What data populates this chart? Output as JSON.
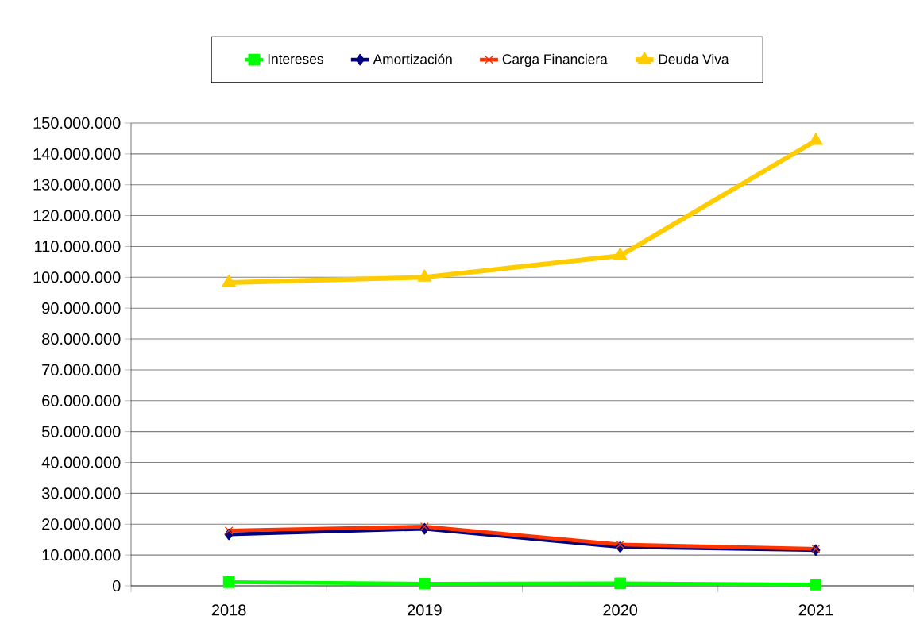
{
  "chart_data": {
    "type": "line",
    "categories": [
      "2018",
      "2019",
      "2020",
      "2021"
    ],
    "series": [
      {
        "name": "Intereses",
        "color": "#00ff00",
        "marker": "square",
        "values": [
          1200000,
          700000,
          800000,
          400000
        ]
      },
      {
        "name": "Amortización",
        "color": "#000080",
        "marker": "diamond",
        "values": [
          16700000,
          18500000,
          12600000,
          11600000
        ]
      },
      {
        "name": "Carga Financiera",
        "color": "#ff3300",
        "marker": "cross",
        "values": [
          17900000,
          19200000,
          13400000,
          12000000
        ]
      },
      {
        "name": "Deuda Viva",
        "color": "#ffcc00",
        "marker": "triangle",
        "values": [
          98300000,
          100000000,
          107000000,
          144300000
        ]
      }
    ],
    "ylim": [
      0,
      150000000
    ],
    "yticks": [
      {
        "value": 0,
        "label": "0"
      },
      {
        "value": 10000000,
        "label": "10.000.000"
      },
      {
        "value": 20000000,
        "label": "20.000.000"
      },
      {
        "value": 30000000,
        "label": "30.000.000"
      },
      {
        "value": 40000000,
        "label": "40.000.000"
      },
      {
        "value": 50000000,
        "label": "50.000.000"
      },
      {
        "value": 60000000,
        "label": "60.000.000"
      },
      {
        "value": 70000000,
        "label": "70.000.000"
      },
      {
        "value": 80000000,
        "label": "80.000.000"
      },
      {
        "value": 90000000,
        "label": "90.000.000"
      },
      {
        "value": 100000000,
        "label": "100.000.000"
      },
      {
        "value": 110000000,
        "label": "110.000.000"
      },
      {
        "value": 120000000,
        "label": "120.000.000"
      },
      {
        "value": 130000000,
        "label": "130.000.000"
      },
      {
        "value": 140000000,
        "label": "140.000.000"
      },
      {
        "value": 150000000,
        "label": "150.000.000"
      }
    ],
    "grid": "y",
    "legend": "top",
    "line_style": "solid"
  }
}
